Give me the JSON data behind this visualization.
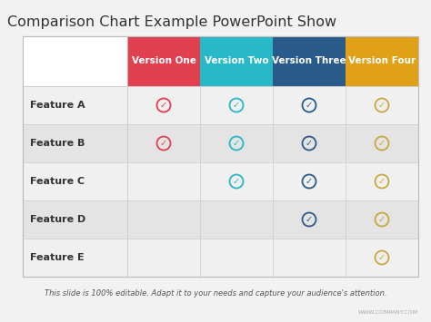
{
  "title": "Comparison Chart Example PowerPoint Show",
  "title_fontsize": 11.5,
  "title_color": "#333333",
  "bg_color": "#f2f2f2",
  "features": [
    "Feature A",
    "Feature B",
    "Feature C",
    "Feature D",
    "Feature E"
  ],
  "versions": [
    "Version One",
    "Version Two",
    "Version Three",
    "Version Four"
  ],
  "version_colors": [
    "#e04050",
    "#28b8c8",
    "#2a5a8a",
    "#e0a018"
  ],
  "version_text_color": "#ffffff",
  "check_colors": [
    "#e04050",
    "#28b8c8",
    "#2a5a8a",
    "#c8a840"
  ],
  "checks": [
    [
      true,
      true,
      true,
      true
    ],
    [
      true,
      true,
      true,
      true
    ],
    [
      false,
      true,
      true,
      true
    ],
    [
      false,
      false,
      true,
      true
    ],
    [
      false,
      false,
      false,
      true
    ]
  ],
  "feature_label_color": "#333333",
  "subtitle": "This slide is 100% editable. Adapt it to your needs and capture your audience's attention.",
  "subtitle_fontsize": 6.0,
  "subtitle_color": "#555555",
  "watermark": "WWW.COMPANY.COM",
  "row_colors": [
    "#f0f0f0",
    "#e4e4e4"
  ],
  "header_white_bg": "#ffffff"
}
